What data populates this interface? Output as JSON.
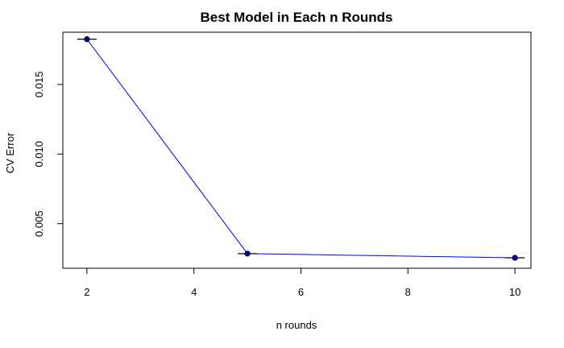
{
  "chart_data": {
    "type": "line",
    "title": "Best Model in Each n Rounds",
    "xlabel": "n rounds",
    "ylabel": "CV Error",
    "x": [
      2,
      5,
      10
    ],
    "series": [
      {
        "values": [
          0.01825,
          0.00285,
          0.00255
        ],
        "error_bars": [
          2e-05,
          2e-05,
          2e-05
        ]
      }
    ],
    "xlim": [
      1.55,
      10.3
    ],
    "ylim": [
      0.0018,
      0.01875
    ],
    "xticks": [
      2,
      4,
      6,
      8,
      10
    ],
    "yticks": [
      0.005,
      0.01,
      0.015
    ],
    "ytick_labels": [
      "0.005",
      "0.010",
      "0.015"
    ],
    "grid": false,
    "line_color": "#0000ff",
    "point_color": "#00008b"
  }
}
